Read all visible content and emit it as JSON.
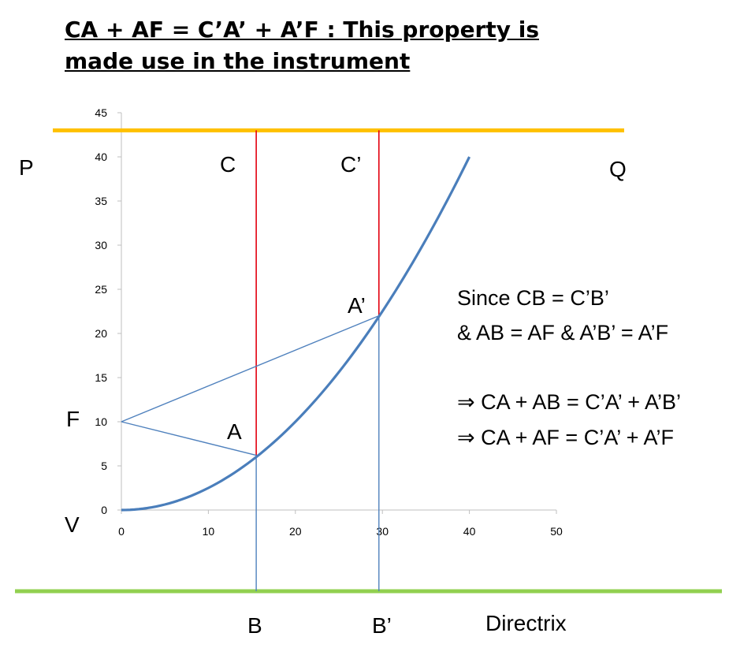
{
  "title": {
    "line1": "CA + AF = C’A’ + A’F  : This property is",
    "line2": "made use in the instrument"
  },
  "labels": {
    "P": "P",
    "Q": "Q",
    "C": "C",
    "C_prime": "C’",
    "A": "A",
    "A_prime": "A’",
    "F": "F",
    "V": "V",
    "B": "B",
    "B_prime": "B’",
    "directrix": "Directrix"
  },
  "equations": {
    "line1": "Since CB = C’B’",
    "line2": "& AB = AF  & A’B’ = A’F",
    "line3": "⇒ CA + AB = C’A’ + A’B’",
    "line4": "⇒ CA + AF = C’A’ + A’F"
  },
  "colors": {
    "curve": "#4A7EBB",
    "thin_lines": "#4F81BD",
    "red_lines": "#E3000F",
    "top_line": "#FFC000",
    "directrix": "#92D050",
    "axis": "#BFBFBF"
  },
  "chart_data": {
    "type": "line",
    "x_ticks": [
      0,
      10,
      20,
      30,
      40,
      50
    ],
    "y_ticks": [
      0,
      5,
      10,
      15,
      20,
      25,
      30,
      35,
      40,
      45
    ],
    "xlim": [
      0,
      50
    ],
    "ylim": [
      0,
      45
    ],
    "grid": false,
    "series": [
      {
        "x": [
          0,
          5,
          10,
          15,
          20,
          25,
          30,
          35,
          40
        ],
        "y": [
          0,
          0.63,
          2.5,
          5.63,
          10,
          15.63,
          22.5,
          30.63,
          40
        ]
      }
    ],
    "points": {
      "F": [
        0,
        10
      ],
      "A": [
        15.5,
        6.2
      ],
      "A_prime": [
        29.6,
        22
      ]
    },
    "top_line_y": 43,
    "directrix_y": -9.2
  }
}
